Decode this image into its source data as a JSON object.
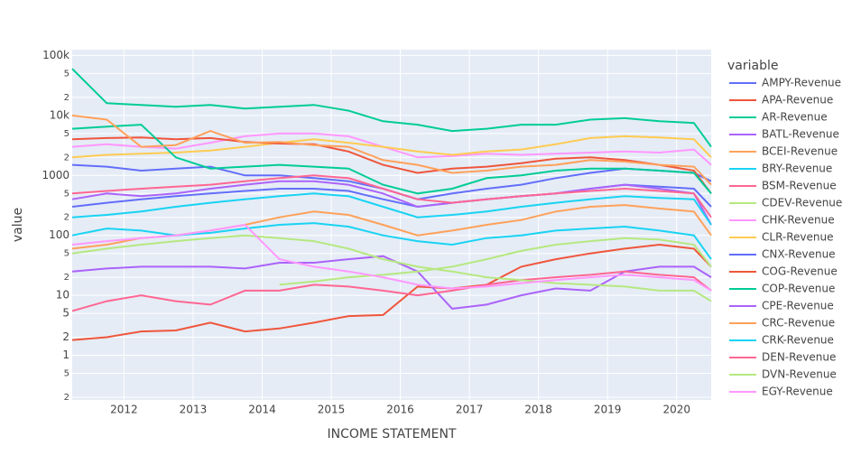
{
  "chart_data": {
    "type": "line",
    "x_label": "INCOME STATEMENT",
    "y_label": "value",
    "legend_title": "variable",
    "log_y": true,
    "grid": true,
    "legend_position": "right",
    "x": [
      2011.25,
      2011.75,
      2012.25,
      2012.75,
      2013.25,
      2013.75,
      2014.25,
      2014.75,
      2015.25,
      2015.75,
      2016.25,
      2016.75,
      2017.25,
      2017.75,
      2018.25,
      2018.75,
      2019.25,
      2019.75,
      2020.25,
      2020.5
    ],
    "xlim": [
      2011.25,
      2020.5
    ],
    "xticks": [
      2012,
      2013,
      2014,
      2015,
      2016,
      2017,
      2018,
      2019,
      2020
    ],
    "ylim": [
      0.18,
      125000
    ],
    "yticks": [
      {
        "value": 100000,
        "label": "100k"
      },
      {
        "value": 50000,
        "label": "5"
      },
      {
        "value": 20000,
        "label": "2"
      },
      {
        "value": 10000,
        "label": "10k"
      },
      {
        "value": 5000,
        "label": "5"
      },
      {
        "value": 2000,
        "label": "2"
      },
      1000,
      {
        "value": 500,
        "label": "5"
      },
      {
        "value": 200,
        "label": "2"
      },
      100,
      {
        "value": 50,
        "label": "5"
      },
      {
        "value": 20,
        "label": "2"
      },
      10,
      5,
      2,
      1,
      {
        "value": 0.5,
        "label": "5"
      },
      {
        "value": 0.2,
        "label": "2"
      }
    ],
    "series": [
      {
        "name": "AMPY-Revenue",
        "color": "#636efa",
        "values": [
          300,
          350,
          400,
          450,
          500,
          550,
          600,
          600,
          550,
          400,
          300,
          350,
          400,
          450,
          500,
          600,
          700,
          650,
          600,
          300
        ]
      },
      {
        "name": "APA-Revenue",
        "color": "#EF553B",
        "values": [
          1.8,
          2,
          2.5,
          2.6,
          3.5,
          2.5,
          2.8,
          3.5,
          4.5,
          4.7,
          14,
          13,
          15,
          30,
          40,
          50,
          60,
          70,
          60,
          30
        ]
      },
      {
        "name": "AR-Revenue",
        "color": "#00cc96",
        "values": [
          60000,
          16000,
          15000,
          14000,
          15000,
          13000,
          14000,
          15000,
          12000,
          8000,
          7000,
          5500,
          6000,
          7000,
          7000,
          8500,
          9000,
          8000,
          7500,
          3000
        ]
      },
      {
        "name": "BATL-Revenue",
        "color": "#ab63fa",
        "values": [
          25,
          28,
          30,
          30,
          30,
          28,
          35,
          35,
          40,
          45,
          25,
          6,
          7,
          10,
          13,
          12,
          25,
          30,
          30,
          20
        ]
      },
      {
        "name": "BCEI-Revenue",
        "color": "#FFA15A",
        "values": [
          60,
          70,
          90,
          100,
          120,
          150,
          200,
          250,
          220,
          150,
          100,
          120,
          150,
          180,
          250,
          300,
          320,
          280,
          250,
          100
        ]
      },
      {
        "name": "BRY-Revenue",
        "color": "#19d3f3",
        "values": [
          100,
          130,
          120,
          100,
          110,
          130,
          150,
          160,
          140,
          100,
          80,
          70,
          90,
          100,
          120,
          130,
          140,
          120,
          100,
          40
        ]
      },
      {
        "name": "BSM-Revenue",
        "color": "#FF6692",
        "values": [
          5.5,
          8,
          10,
          8,
          7,
          12,
          12,
          15,
          14,
          12,
          10,
          12,
          15,
          18,
          20,
          22,
          25,
          22,
          20,
          12
        ]
      },
      {
        "name": "CDEV-Revenue",
        "color": "#B6E880",
        "values": [
          null,
          null,
          null,
          null,
          null,
          null,
          15,
          17,
          20,
          22,
          25,
          30,
          40,
          55,
          70,
          80,
          90,
          85,
          70,
          30
        ]
      },
      {
        "name": "CHK-Revenue",
        "color": "#FF97FF",
        "values": [
          3000,
          3300,
          3000,
          2800,
          3500,
          4500,
          5000,
          5000,
          4500,
          3000,
          2000,
          2100,
          2300,
          2200,
          2300,
          2400,
          2500,
          2400,
          2700,
          1500
        ]
      },
      {
        "name": "CLR-Revenue",
        "color": "#FECB52",
        "values": [
          2000,
          2200,
          2300,
          2400,
          2600,
          3000,
          3500,
          4000,
          3500,
          3000,
          2500,
          2200,
          2500,
          2700,
          3300,
          4200,
          4500,
          4300,
          4000,
          2000
        ]
      },
      {
        "name": "CNX-Revenue",
        "color": "#636efa",
        "values": [
          1500,
          1400,
          1200,
          1300,
          1400,
          1000,
          1000,
          900,
          800,
          600,
          400,
          500,
          600,
          700,
          900,
          1100,
          1300,
          1200,
          1100,
          800
        ]
      },
      {
        "name": "COG-Revenue",
        "color": "#EF553B",
        "values": [
          4000,
          4200,
          4300,
          4000,
          4200,
          3600,
          3400,
          3300,
          2500,
          1500,
          1100,
          1300,
          1400,
          1600,
          1900,
          2000,
          1800,
          1500,
          1200,
          500
        ]
      },
      {
        "name": "COP-Revenue",
        "color": "#00cc96",
        "values": [
          6000,
          6500,
          7000,
          2000,
          1300,
          1400,
          1500,
          1400,
          1300,
          700,
          500,
          600,
          900,
          1000,
          1200,
          1300,
          1300,
          1200,
          1100,
          500
        ]
      },
      {
        "name": "CPE-Revenue",
        "color": "#ab63fa",
        "values": [
          400,
          500,
          450,
          500,
          600,
          700,
          800,
          800,
          700,
          500,
          300,
          350,
          400,
          450,
          500,
          600,
          700,
          600,
          500,
          150
        ]
      },
      {
        "name": "CRC-Revenue",
        "color": "#FFA15A",
        "values": [
          10000,
          8500,
          3000,
          3200,
          5500,
          3500,
          3600,
          3200,
          3000,
          1800,
          1500,
          1100,
          1200,
          1400,
          1500,
          1800,
          1700,
          1500,
          1400,
          700
        ]
      },
      {
        "name": "CRK-Revenue",
        "color": "#19d3f3",
        "values": [
          200,
          220,
          250,
          300,
          350,
          400,
          450,
          500,
          450,
          300,
          200,
          220,
          250,
          300,
          350,
          400,
          450,
          420,
          400,
          150
        ]
      },
      {
        "name": "DEN-Revenue",
        "color": "#FF6692",
        "values": [
          500,
          550,
          600,
          650,
          700,
          800,
          900,
          1000,
          900,
          600,
          400,
          350,
          400,
          450,
          500,
          550,
          600,
          550,
          500,
          200
        ]
      },
      {
        "name": "DVN-Revenue",
        "color": "#B6E880",
        "values": [
          50,
          60,
          70,
          80,
          90,
          100,
          90,
          80,
          60,
          40,
          30,
          25,
          20,
          18,
          16,
          15,
          14,
          12,
          12,
          8
        ]
      },
      {
        "name": "EGY-Revenue",
        "color": "#FF97FF",
        "values": [
          70,
          80,
          90,
          100,
          120,
          150,
          40,
          30,
          25,
          20,
          15,
          13,
          14,
          16,
          18,
          20,
          22,
          20,
          18,
          12
        ]
      }
    ]
  }
}
